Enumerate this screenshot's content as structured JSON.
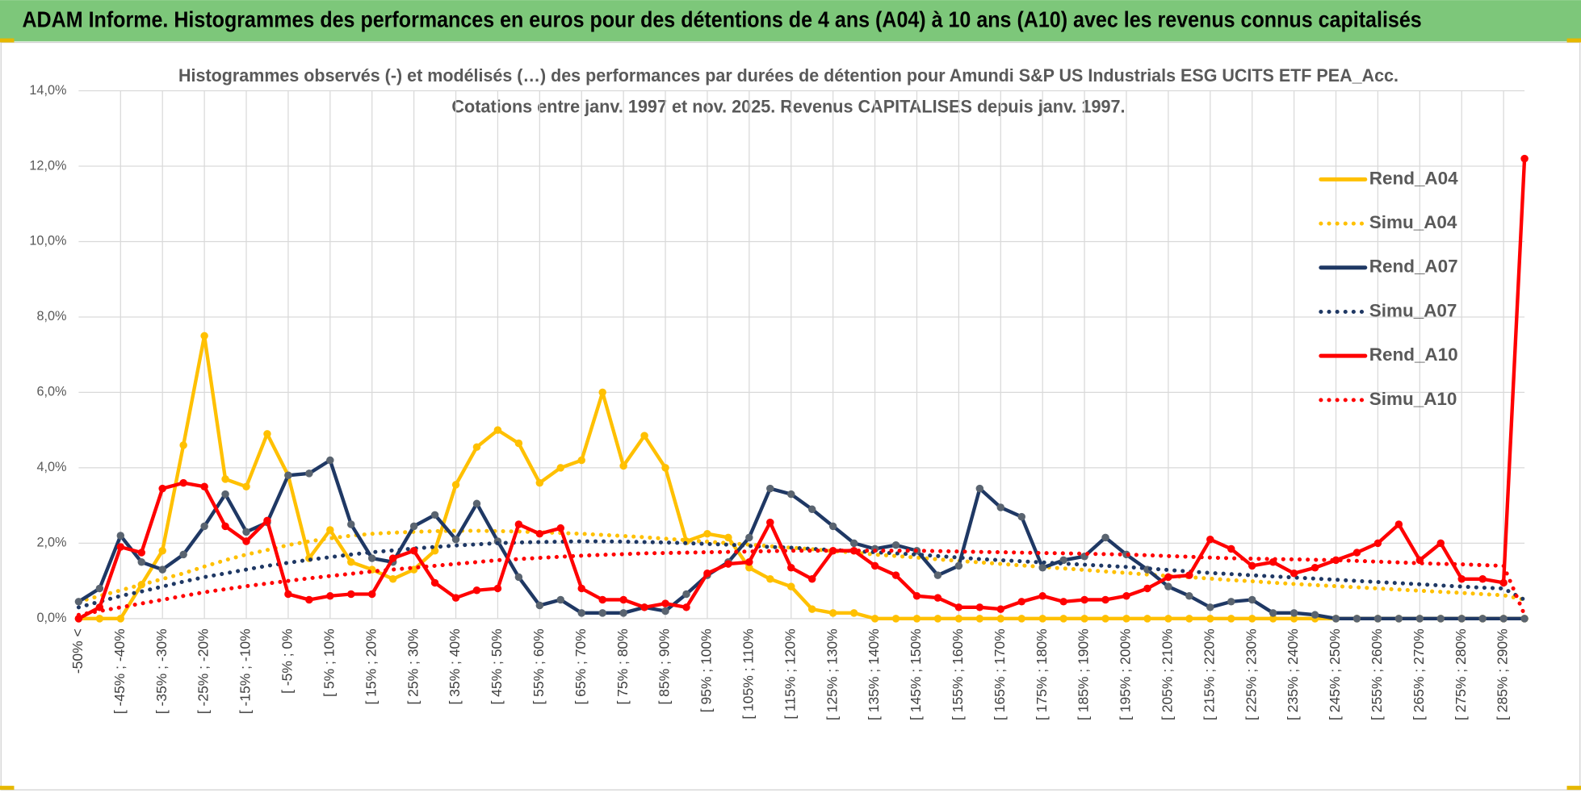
{
  "header": {
    "title": "ADAM Informe. Histogrammes des performances en euros pour des détentions de 4 ans (A04) à 10 ans (A10) avec les revenus connus capitalisés"
  },
  "chart_data": {
    "type": "line",
    "title": "Histogrammes observés (-) et modélisés (…) des performances par durées de détention pour Amundi S&P US Industrials ESG UCITS ETF PEA_Acc.",
    "subtitle": "Cotations entre janv. 1997 et nov. 2025. Revenus CAPITALISES depuis janv. 1997.",
    "categories": [
      "-50% <",
      null,
      "[ -45% ; -40%",
      null,
      "[ -35% ; -30%",
      null,
      "[ -25% ; -20%",
      null,
      "[ -15% ; -10%",
      null,
      "[ -5% ; 0%",
      null,
      "[ 5% ; 10%",
      null,
      "[ 15% ; 20%",
      null,
      "[ 25% ; 30%",
      null,
      "[ 35% ; 40%",
      null,
      "[ 45% ; 50%",
      null,
      "[ 55% ; 60%",
      null,
      "[ 65% ; 70%",
      null,
      "[ 75% ; 80%",
      null,
      "[ 85% ; 90%",
      null,
      "[ 95% ; 100%",
      null,
      "[ 105% ; 110%",
      null,
      "[ 115% ; 120%",
      null,
      "[ 125% ; 130%",
      null,
      "[ 135% ; 140%",
      null,
      "[ 145% ; 150%",
      null,
      "[ 155% ; 160%",
      null,
      "[ 165% ; 170%",
      null,
      "[ 175% ; 180%",
      null,
      "[ 185% ; 190%",
      null,
      "[ 195% ; 200%",
      null,
      "[ 205% ; 210%",
      null,
      "[ 215% ; 220%",
      null,
      "[ 225% ; 230%",
      null,
      "[ 235% ; 240%",
      null,
      "[ 245% ; 250%",
      null,
      "[ 255% ; 260%",
      null,
      "[ 265% ; 270%",
      null,
      "[ 275% ; 280%",
      null,
      "[ 285% ; 290%",
      null
    ],
    "ylim": [
      0,
      14
    ],
    "yticks": [
      {
        "value": 0,
        "label": "0,0%"
      },
      {
        "value": 2,
        "label": "2,0%"
      },
      {
        "value": 4,
        "label": "4,0%"
      },
      {
        "value": 6,
        "label": "6,0%"
      },
      {
        "value": 8,
        "label": "8,0%"
      },
      {
        "value": 10,
        "label": "10,0%"
      },
      {
        "value": 12,
        "label": "12,0%"
      },
      {
        "value": 14,
        "label": "14,0%"
      }
    ],
    "grid": true,
    "legend": "upper right",
    "series": [
      {
        "name": "Rend_A04",
        "color": "#ffc000",
        "style": "solid",
        "marker": true,
        "values": [
          0,
          0,
          0,
          0.9,
          1.8,
          4.6,
          7.5,
          3.7,
          3.5,
          4.9,
          3.8,
          1.6,
          2.35,
          1.5,
          1.3,
          1.05,
          1.3,
          1.8,
          3.55,
          4.55,
          5.0,
          4.65,
          3.6,
          4.0,
          4.2,
          6.0,
          4.05,
          4.85,
          4.0,
          2.05,
          2.25,
          2.15,
          1.35,
          1.05,
          0.85,
          0.25,
          0.15,
          0.15,
          0,
          0,
          0,
          0,
          0,
          0,
          0,
          0,
          0,
          0,
          0,
          0,
          0,
          0,
          0,
          0,
          0,
          0,
          0,
          0,
          0,
          0,
          0,
          0,
          0,
          0,
          0,
          0,
          0,
          0,
          0,
          0
        ]
      },
      {
        "name": "Simu_A04",
        "color": "#ffc000",
        "style": "dotted",
        "marker": false,
        "values": [
          0.45,
          0.6,
          0.75,
          0.9,
          1.05,
          1.2,
          1.38,
          1.55,
          1.7,
          1.82,
          1.95,
          2.05,
          2.13,
          2.2,
          2.25,
          2.28,
          2.3,
          2.32,
          2.33,
          2.33,
          2.32,
          2.31,
          2.29,
          2.27,
          2.25,
          2.22,
          2.19,
          2.16,
          2.12,
          2.08,
          2.04,
          2.0,
          1.96,
          1.92,
          1.88,
          1.84,
          1.79,
          1.75,
          1.7,
          1.66,
          1.62,
          1.57,
          1.53,
          1.49,
          1.45,
          1.41,
          1.37,
          1.33,
          1.29,
          1.25,
          1.21,
          1.17,
          1.13,
          1.1,
          1.06,
          1.02,
          0.99,
          0.95,
          0.92,
          0.89,
          0.86,
          0.83,
          0.8,
          0.77,
          0.74,
          0.71,
          0.68,
          0.65,
          0.62,
          0.5
        ]
      },
      {
        "name": "Rend_A07",
        "color": "#1f3864",
        "marker_color": "#5a6470",
        "style": "solid",
        "marker": true,
        "values": [
          0.45,
          0.8,
          2.2,
          1.5,
          1.3,
          1.7,
          2.45,
          3.3,
          2.3,
          2.55,
          3.8,
          3.85,
          4.2,
          2.5,
          1.6,
          1.5,
          2.45,
          2.75,
          2.1,
          3.05,
          2.05,
          1.1,
          0.35,
          0.5,
          0.15,
          0.15,
          0.15,
          0.3,
          0.2,
          0.65,
          1.15,
          1.5,
          2.15,
          3.45,
          3.3,
          2.9,
          2.45,
          2.0,
          1.85,
          1.95,
          1.8,
          1.15,
          1.4,
          3.45,
          2.95,
          2.7,
          1.35,
          1.55,
          1.65,
          2.15,
          1.7,
          1.3,
          0.85,
          0.6,
          0.3,
          0.45,
          0.5,
          0.15,
          0.15,
          0.1,
          0,
          0,
          0,
          0,
          0,
          0,
          0,
          0,
          0,
          0
        ]
      },
      {
        "name": "Simu_A07",
        "color": "#1f3864",
        "style": "dotted",
        "marker": false,
        "values": [
          0.3,
          0.45,
          0.6,
          0.72,
          0.85,
          0.98,
          1.1,
          1.2,
          1.3,
          1.4,
          1.48,
          1.56,
          1.63,
          1.7,
          1.76,
          1.81,
          1.86,
          1.9,
          1.94,
          1.97,
          2.0,
          2.02,
          2.03,
          2.04,
          2.05,
          2.05,
          2.04,
          2.03,
          2.02,
          2.0,
          1.98,
          1.96,
          1.93,
          1.9,
          1.88,
          1.85,
          1.82,
          1.79,
          1.76,
          1.73,
          1.7,
          1.66,
          1.62,
          1.58,
          1.55,
          1.52,
          1.49,
          1.46,
          1.43,
          1.4,
          1.37,
          1.33,
          1.29,
          1.25,
          1.21,
          1.18,
          1.15,
          1.12,
          1.09,
          1.06,
          1.03,
          1.0,
          0.97,
          0.94,
          0.91,
          0.88,
          0.85,
          0.82,
          0.8,
          0.5
        ]
      },
      {
        "name": "Rend_A10",
        "color": "#ff0000",
        "style": "solid",
        "marker": true,
        "values": [
          0,
          0.3,
          1.9,
          1.75,
          3.45,
          3.6,
          3.5,
          2.45,
          2.05,
          2.6,
          0.65,
          0.5,
          0.6,
          0.65,
          0.65,
          1.6,
          1.8,
          0.95,
          0.55,
          0.75,
          0.8,
          2.5,
          2.25,
          2.4,
          0.8,
          0.5,
          0.5,
          0.3,
          0.4,
          0.3,
          1.2,
          1.45,
          1.5,
          2.55,
          1.35,
          1.05,
          1.8,
          1.8,
          1.4,
          1.15,
          0.6,
          0.55,
          0.3,
          0.3,
          0.25,
          0.45,
          0.6,
          0.45,
          0.5,
          0.5,
          0.6,
          0.8,
          1.1,
          1.15,
          2.1,
          1.85,
          1.4,
          1.5,
          1.2,
          1.35,
          1.55,
          1.75,
          2.0,
          2.5,
          1.55,
          2.0,
          1.05,
          1.05,
          0.95,
          12.2
        ]
      },
      {
        "name": "Simu_A10",
        "color": "#ff0000",
        "style": "dotted",
        "marker": false,
        "values": [
          0.1,
          0.2,
          0.3,
          0.4,
          0.5,
          0.6,
          0.7,
          0.78,
          0.86,
          0.93,
          1.0,
          1.07,
          1.13,
          1.19,
          1.25,
          1.3,
          1.35,
          1.4,
          1.45,
          1.5,
          1.55,
          1.58,
          1.61,
          1.64,
          1.67,
          1.69,
          1.71,
          1.73,
          1.74,
          1.75,
          1.76,
          1.77,
          1.78,
          1.79,
          1.8,
          1.8,
          1.8,
          1.8,
          1.8,
          1.8,
          1.8,
          1.79,
          1.78,
          1.77,
          1.76,
          1.75,
          1.74,
          1.73,
          1.72,
          1.71,
          1.7,
          1.68,
          1.66,
          1.64,
          1.62,
          1.6,
          1.59,
          1.58,
          1.57,
          1.56,
          1.55,
          1.53,
          1.51,
          1.49,
          1.47,
          1.45,
          1.44,
          1.42,
          1.4,
          0.1
        ]
      }
    ]
  }
}
